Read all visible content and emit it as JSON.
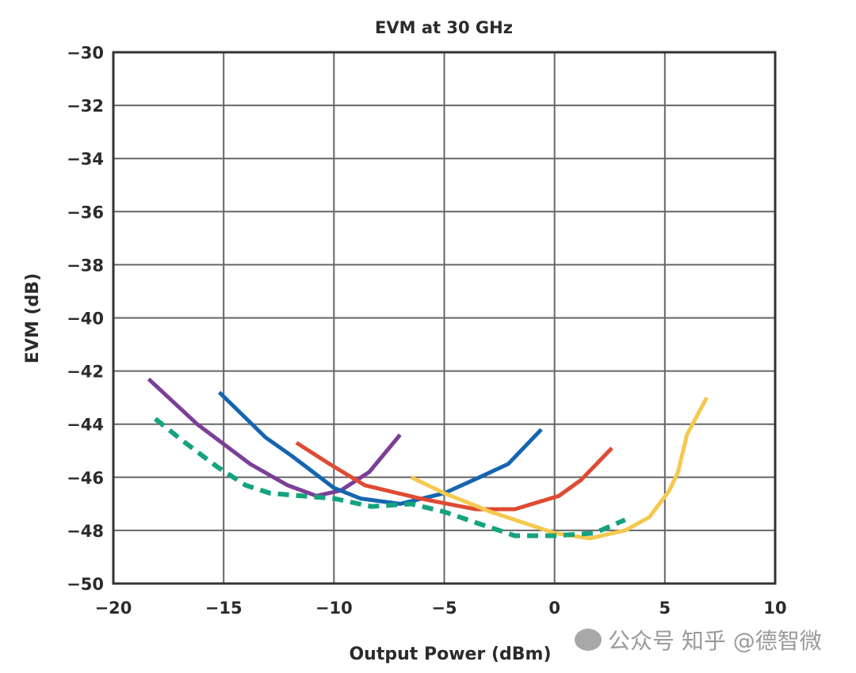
{
  "chart_data": {
    "type": "line",
    "title": "EVM at 30 GHz",
    "xlabel": "Output Power (dBm)",
    "ylabel": "EVM (dB)",
    "xlim": [
      -20,
      10
    ],
    "ylim": [
      -50,
      -30
    ],
    "xticks": [
      -20,
      -15,
      -10,
      -5,
      0,
      5,
      10
    ],
    "yticks": [
      -30,
      -32,
      -34,
      -36,
      -38,
      -40,
      -42,
      -44,
      -46,
      -48,
      -50
    ],
    "xtick_labels": [
      "−20",
      "−15",
      "−10",
      "−5",
      "0",
      "5",
      "10"
    ],
    "ytick_labels": [
      "−30",
      "−32",
      "−34",
      "−36",
      "−38",
      "−40",
      "−42",
      "−44",
      "−46",
      "−48",
      "−50"
    ],
    "grid": true,
    "legend": "none",
    "series": [
      {
        "color": "#7b3f98",
        "style": "solid",
        "x": [
          -18.4,
          -16.2,
          -13.8,
          -12.1,
          -10.8,
          -9.7,
          -8.4,
          -7.0
        ],
        "y": [
          -42.3,
          -44.0,
          -45.5,
          -46.3,
          -46.7,
          -46.5,
          -45.8,
          -44.4
        ]
      },
      {
        "color": "#1565b0",
        "style": "solid",
        "x": [
          -15.2,
          -13.1,
          -11.9,
          -10.0,
          -8.8,
          -7.0,
          -5.0,
          -3.4,
          -2.1,
          -0.6
        ],
        "y": [
          -42.8,
          -44.5,
          -45.2,
          -46.4,
          -46.8,
          -47.0,
          -46.6,
          -46.0,
          -45.5,
          -44.2
        ]
      },
      {
        "color": "#e04a33",
        "style": "solid",
        "x": [
          -11.7,
          -10.2,
          -8.6,
          -6.1,
          -3.6,
          -1.8,
          0.2,
          1.2,
          2.6
        ],
        "y": [
          -44.7,
          -45.5,
          -46.3,
          -46.8,
          -47.2,
          -47.2,
          -46.7,
          -46.1,
          -44.9
        ]
      },
      {
        "color": "#f5c94e",
        "style": "solid",
        "x": [
          -6.5,
          -5.0,
          -2.9,
          0.0,
          1.6,
          3.2,
          4.3,
          5.2,
          5.6,
          6.0,
          6.9
        ],
        "y": [
          -46.0,
          -46.6,
          -47.3,
          -48.1,
          -48.3,
          -48.0,
          -47.5,
          -46.5,
          -45.8,
          -44.4,
          -43.0
        ]
      },
      {
        "color": "#14a37f",
        "style": "dashed",
        "x": [
          -18.1,
          -16.9,
          -15.3,
          -14.0,
          -12.9,
          -11.5,
          -10.0,
          -8.3,
          -6.5,
          -5.0,
          -3.6,
          -1.8,
          0.0,
          1.8,
          3.2
        ],
        "y": [
          -43.8,
          -44.6,
          -45.6,
          -46.3,
          -46.6,
          -46.7,
          -46.8,
          -47.1,
          -47.0,
          -47.3,
          -47.7,
          -48.2,
          -48.2,
          -48.1,
          -47.6
        ]
      }
    ]
  },
  "watermark": "公众号 知乎 @德智微"
}
